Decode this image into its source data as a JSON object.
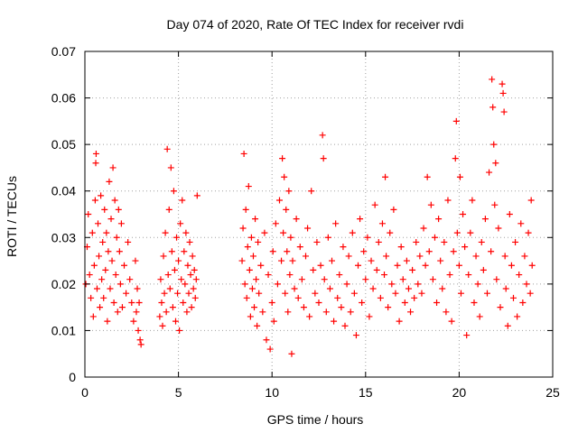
{
  "chart_data": {
    "type": "scatter",
    "title": "Day 074 of 2020, Rate Of TEC Index for receiver rvdi",
    "xlabel": "GPS time / hours",
    "ylabel": "ROTI / TECUs",
    "xlim": [
      0,
      25
    ],
    "ylim": [
      0,
      0.07
    ],
    "x_ticks": [
      0,
      5,
      10,
      15,
      20,
      25
    ],
    "x_tick_labels": [
      "0",
      "5",
      "10",
      "15",
      "20",
      "25"
    ],
    "y_ticks": [
      0,
      0.01,
      0.02,
      0.03,
      0.04,
      0.05,
      0.06,
      0.07
    ],
    "y_tick_labels": [
      "0",
      "0.01",
      "0.02",
      "0.03",
      "0.04",
      "0.05",
      "0.06",
      "0.07"
    ],
    "grid": true,
    "marker": "plus",
    "point_color": "#ff0000",
    "series": [
      {
        "name": "ROTI",
        "points": [
          [
            0.05,
            0.02
          ],
          [
            0.12,
            0.028
          ],
          [
            0.18,
            0.035
          ],
          [
            0.25,
            0.022
          ],
          [
            0.32,
            0.017
          ],
          [
            0.4,
            0.031
          ],
          [
            0.45,
            0.013
          ],
          [
            0.5,
            0.024
          ],
          [
            0.55,
            0.038
          ],
          [
            0.58,
            0.046
          ],
          [
            0.6,
            0.048
          ],
          [
            0.65,
            0.019
          ],
          [
            0.7,
            0.033
          ],
          [
            0.75,
            0.026
          ],
          [
            0.8,
            0.015
          ],
          [
            0.85,
            0.039
          ],
          [
            0.9,
            0.021
          ],
          [
            0.95,
            0.029
          ],
          [
            1.0,
            0.017
          ],
          [
            1.05,
            0.036
          ],
          [
            1.1,
            0.023
          ],
          [
            1.15,
            0.031
          ],
          [
            1.2,
            0.012
          ],
          [
            1.25,
            0.027
          ],
          [
            1.3,
            0.042
          ],
          [
            1.35,
            0.019
          ],
          [
            1.4,
            0.034
          ],
          [
            1.45,
            0.025
          ],
          [
            1.5,
            0.045
          ],
          [
            1.55,
            0.016
          ],
          [
            1.6,
            0.038
          ],
          [
            1.65,
            0.022
          ],
          [
            1.7,
            0.03
          ],
          [
            1.75,
            0.014
          ],
          [
            1.8,
            0.036
          ],
          [
            1.85,
            0.027
          ],
          [
            1.9,
            0.02
          ],
          [
            1.95,
            0.033
          ],
          [
            2.0,
            0.015
          ],
          [
            2.1,
            0.024
          ],
          [
            2.2,
            0.018
          ],
          [
            2.3,
            0.029
          ],
          [
            2.4,
            0.021
          ],
          [
            2.5,
            0.016
          ],
          [
            2.6,
            0.012
          ],
          [
            2.7,
            0.025
          ],
          [
            2.75,
            0.014
          ],
          [
            2.8,
            0.019
          ],
          [
            2.85,
            0.01
          ],
          [
            2.9,
            0.016
          ],
          [
            2.95,
            0.008
          ],
          [
            3.0,
            0.007
          ],
          [
            4.0,
            0.013
          ],
          [
            4.05,
            0.021
          ],
          [
            4.1,
            0.016
          ],
          [
            4.15,
            0.011
          ],
          [
            4.2,
            0.026
          ],
          [
            4.25,
            0.018
          ],
          [
            4.3,
            0.031
          ],
          [
            4.35,
            0.014
          ],
          [
            4.4,
            0.049
          ],
          [
            4.45,
            0.022
          ],
          [
            4.5,
            0.036
          ],
          [
            4.55,
            0.019
          ],
          [
            4.6,
            0.045
          ],
          [
            4.65,
            0.027
          ],
          [
            4.7,
            0.015
          ],
          [
            4.75,
            0.04
          ],
          [
            4.8,
            0.023
          ],
          [
            4.85,
            0.012
          ],
          [
            4.9,
            0.03
          ],
          [
            4.95,
            0.018
          ],
          [
            5.0,
            0.025
          ],
          [
            5.05,
            0.01
          ],
          [
            5.1,
            0.033
          ],
          [
            5.15,
            0.021
          ],
          [
            5.2,
            0.038
          ],
          [
            5.25,
            0.016
          ],
          [
            5.3,
            0.027
          ],
          [
            5.35,
            0.02
          ],
          [
            5.4,
            0.031
          ],
          [
            5.45,
            0.014
          ],
          [
            5.5,
            0.024
          ],
          [
            5.55,
            0.018
          ],
          [
            5.6,
            0.029
          ],
          [
            5.65,
            0.022
          ],
          [
            5.7,
            0.015
          ],
          [
            5.75,
            0.026
          ],
          [
            5.8,
            0.019
          ],
          [
            5.85,
            0.023
          ],
          [
            5.9,
            0.017
          ],
          [
            5.95,
            0.021
          ],
          [
            6.0,
            0.039
          ],
          [
            8.4,
            0.025
          ],
          [
            8.45,
            0.032
          ],
          [
            8.5,
            0.048
          ],
          [
            8.55,
            0.02
          ],
          [
            8.6,
            0.036
          ],
          [
            8.65,
            0.017
          ],
          [
            8.7,
            0.028
          ],
          [
            8.75,
            0.041
          ],
          [
            8.8,
            0.023
          ],
          [
            8.85,
            0.013
          ],
          [
            8.9,
            0.03
          ],
          [
            8.95,
            0.019
          ],
          [
            9.0,
            0.026
          ],
          [
            9.05,
            0.015
          ],
          [
            9.1,
            0.034
          ],
          [
            9.15,
            0.021
          ],
          [
            9.2,
            0.011
          ],
          [
            9.25,
            0.029
          ],
          [
            9.3,
            0.018
          ],
          [
            9.4,
            0.024
          ],
          [
            9.5,
            0.014
          ],
          [
            9.6,
            0.031
          ],
          [
            9.7,
            0.008
          ],
          [
            9.8,
            0.022
          ],
          [
            9.9,
            0.006
          ],
          [
            10.0,
            0.016
          ],
          [
            10.05,
            0.027
          ],
          [
            10.1,
            0.012
          ],
          [
            10.2,
            0.033
          ],
          [
            10.3,
            0.02
          ],
          [
            10.4,
            0.038
          ],
          [
            10.5,
            0.025
          ],
          [
            10.55,
            0.047
          ],
          [
            10.6,
            0.031
          ],
          [
            10.65,
            0.043
          ],
          [
            10.7,
            0.018
          ],
          [
            10.75,
            0.036
          ],
          [
            10.8,
            0.027
          ],
          [
            10.85,
            0.014
          ],
          [
            10.9,
            0.04
          ],
          [
            10.95,
            0.022
          ],
          [
            11.0,
            0.03
          ],
          [
            11.05,
            0.005
          ],
          [
            11.1,
            0.025
          ],
          [
            11.2,
            0.019
          ],
          [
            11.3,
            0.034
          ],
          [
            11.4,
            0.017
          ],
          [
            11.5,
            0.028
          ],
          [
            11.6,
            0.021
          ],
          [
            11.7,
            0.015
          ],
          [
            11.8,
            0.026
          ],
          [
            11.9,
            0.032
          ],
          [
            12.0,
            0.013
          ],
          [
            12.1,
            0.04
          ],
          [
            12.2,
            0.023
          ],
          [
            12.3,
            0.018
          ],
          [
            12.4,
            0.029
          ],
          [
            12.5,
            0.016
          ],
          [
            12.6,
            0.024
          ],
          [
            12.7,
            0.052
          ],
          [
            12.75,
            0.047
          ],
          [
            12.8,
            0.021
          ],
          [
            12.9,
            0.014
          ],
          [
            13.0,
            0.03
          ],
          [
            13.1,
            0.019
          ],
          [
            13.2,
            0.025
          ],
          [
            13.3,
            0.012
          ],
          [
            13.4,
            0.033
          ],
          [
            13.5,
            0.017
          ],
          [
            13.6,
            0.022
          ],
          [
            13.7,
            0.015
          ],
          [
            13.8,
            0.028
          ],
          [
            13.9,
            0.011
          ],
          [
            14.0,
            0.02
          ],
          [
            14.1,
            0.026
          ],
          [
            14.2,
            0.014
          ],
          [
            14.3,
            0.031
          ],
          [
            14.4,
            0.018
          ],
          [
            14.5,
            0.009
          ],
          [
            14.6,
            0.024
          ],
          [
            14.7,
            0.034
          ],
          [
            14.8,
            0.016
          ],
          [
            14.9,
            0.027
          ],
          [
            15.0,
            0.021
          ],
          [
            15.1,
            0.03
          ],
          [
            15.2,
            0.013
          ],
          [
            15.3,
            0.025
          ],
          [
            15.4,
            0.019
          ],
          [
            15.5,
            0.037
          ],
          [
            15.6,
            0.023
          ],
          [
            15.7,
            0.029
          ],
          [
            15.8,
            0.017
          ],
          [
            15.9,
            0.033
          ],
          [
            16.0,
            0.022
          ],
          [
            16.05,
            0.043
          ],
          [
            16.1,
            0.026
          ],
          [
            16.2,
            0.015
          ],
          [
            16.3,
            0.031
          ],
          [
            16.4,
            0.02
          ],
          [
            16.5,
            0.036
          ],
          [
            16.6,
            0.018
          ],
          [
            16.7,
            0.024
          ],
          [
            16.8,
            0.012
          ],
          [
            16.9,
            0.028
          ],
          [
            17.0,
            0.021
          ],
          [
            17.1,
            0.016
          ],
          [
            17.2,
            0.025
          ],
          [
            17.3,
            0.019
          ],
          [
            17.4,
            0.014
          ],
          [
            17.5,
            0.023
          ],
          [
            17.6,
            0.017
          ],
          [
            17.7,
            0.029
          ],
          [
            17.8,
            0.02
          ],
          [
            17.9,
            0.026
          ],
          [
            18.0,
            0.018
          ],
          [
            18.1,
            0.032
          ],
          [
            18.2,
            0.024
          ],
          [
            18.3,
            0.043
          ],
          [
            18.4,
            0.027
          ],
          [
            18.5,
            0.037
          ],
          [
            18.6,
            0.021
          ],
          [
            18.7,
            0.03
          ],
          [
            18.8,
            0.016
          ],
          [
            18.9,
            0.034
          ],
          [
            19.0,
            0.025
          ],
          [
            19.1,
            0.019
          ],
          [
            19.2,
            0.029
          ],
          [
            19.3,
            0.014
          ],
          [
            19.4,
            0.038
          ],
          [
            19.5,
            0.022
          ],
          [
            19.6,
            0.012
          ],
          [
            19.7,
            0.027
          ],
          [
            19.8,
            0.047
          ],
          [
            19.85,
            0.055
          ],
          [
            19.9,
            0.031
          ],
          [
            20.0,
            0.024
          ],
          [
            20.05,
            0.043
          ],
          [
            20.1,
            0.018
          ],
          [
            20.2,
            0.035
          ],
          [
            20.3,
            0.028
          ],
          [
            20.4,
            0.009
          ],
          [
            20.5,
            0.022
          ],
          [
            20.6,
            0.031
          ],
          [
            20.7,
            0.038
          ],
          [
            20.8,
            0.016
          ],
          [
            20.9,
            0.026
          ],
          [
            21.0,
            0.02
          ],
          [
            21.1,
            0.013
          ],
          [
            21.2,
            0.029
          ],
          [
            21.3,
            0.023
          ],
          [
            21.4,
            0.034
          ],
          [
            21.5,
            0.018
          ],
          [
            21.6,
            0.044
          ],
          [
            21.7,
            0.027
          ],
          [
            21.75,
            0.064
          ],
          [
            21.8,
            0.058
          ],
          [
            21.85,
            0.05
          ],
          [
            21.9,
            0.037
          ],
          [
            21.95,
            0.046
          ],
          [
            22.0,
            0.021
          ],
          [
            22.1,
            0.032
          ],
          [
            22.2,
            0.015
          ],
          [
            22.3,
            0.063
          ],
          [
            22.35,
            0.061
          ],
          [
            22.4,
            0.057
          ],
          [
            22.45,
            0.026
          ],
          [
            22.5,
            0.019
          ],
          [
            22.6,
            0.011
          ],
          [
            22.7,
            0.035
          ],
          [
            22.8,
            0.024
          ],
          [
            22.9,
            0.017
          ],
          [
            23.0,
            0.029
          ],
          [
            23.1,
            0.013
          ],
          [
            23.2,
            0.022
          ],
          [
            23.3,
            0.033
          ],
          [
            23.4,
            0.016
          ],
          [
            23.5,
            0.026
          ],
          [
            23.6,
            0.02
          ],
          [
            23.7,
            0.031
          ],
          [
            23.8,
            0.018
          ],
          [
            23.85,
            0.038
          ],
          [
            23.9,
            0.024
          ]
        ]
      }
    ]
  }
}
